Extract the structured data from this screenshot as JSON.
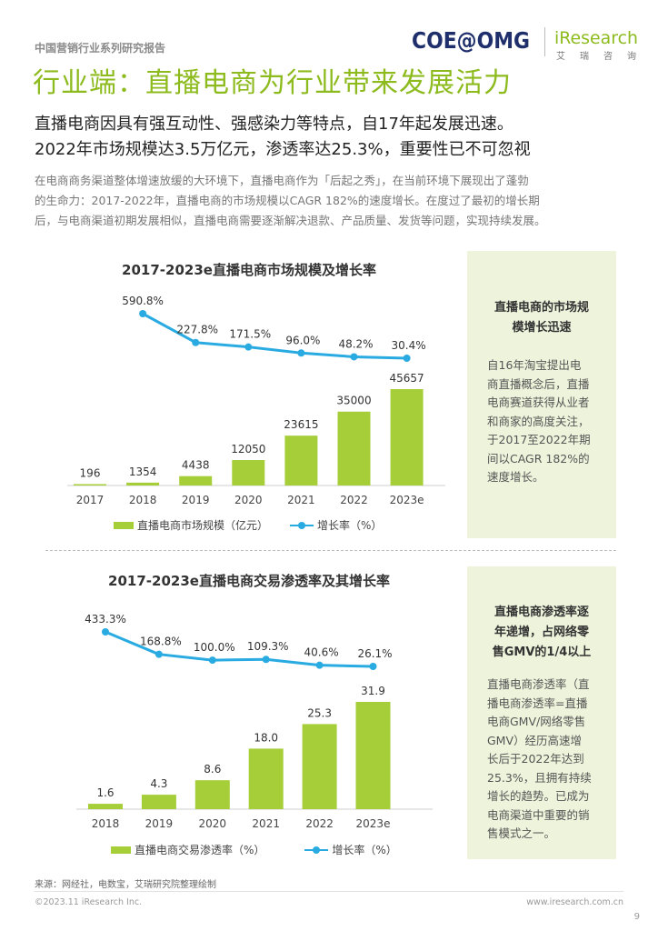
{
  "header": {
    "report_series": "中国营销行业系列研究报告",
    "logo_left": "COE@OMG",
    "logo_right": "iResearch",
    "logo_right_sub": "艾 瑞 咨 询"
  },
  "title": "行业端：直播电商为行业带来发展活力",
  "subtitle_line1": "直播电商因具有强互动性、强感染力等特点，自17年起发展迅速。",
  "subtitle_line2": "2022年市场规模达3.5万亿元，渗透率达25.3%，重要性已不可忽视",
  "intro_lines": [
    "在电商商务渠道整体增速放缓的大环境下，直播电商作为「后起之秀」，在当前环境下展现出了蓬勃",
    "的生命力：2017-2022年，直播电商的市场规模以CAGR 182%的速度增长。在度过了最初的增长期",
    "后，与电商渠道初期发展相似，直播电商需要逐渐解决退款、产品质量、发货等问题，实现持续发展。"
  ],
  "chart_data": [
    {
      "type": "bar",
      "title": "2017-2023e直播电商市场规模及增长率",
      "categories": [
        "2017",
        "2018",
        "2019",
        "2020",
        "2021",
        "2022",
        "2023e"
      ],
      "series": [
        {
          "name": "直播电商市场规模（亿元）",
          "type": "bar",
          "values": [
            196,
            1354,
            4438,
            12050,
            23615,
            35000,
            45657
          ],
          "labels": [
            "196",
            "1354",
            "4438",
            "12050",
            "23615",
            "35000",
            "45657"
          ]
        },
        {
          "name": "增长率（%）",
          "type": "line",
          "x": [
            "2018",
            "2019",
            "2020",
            "2021",
            "2022",
            "2023e"
          ],
          "values": [
            590.8,
            227.8,
            171.5,
            96.0,
            48.2,
            30.4
          ],
          "labels": [
            "590.8%",
            "227.8%",
            "171.5%",
            "96.0%",
            "48.2%",
            "30.4%"
          ]
        }
      ],
      "colors": {
        "bar": "#a6ce39",
        "line": "#29abe2"
      },
      "legend": "bottom",
      "grid": false
    },
    {
      "type": "bar",
      "title": "2017-2023e直播电商交易渗透率及其增长率",
      "categories": [
        "2018",
        "2019",
        "2020",
        "2021",
        "2022",
        "2023e"
      ],
      "series": [
        {
          "name": "直播电商交易渗透率（%）",
          "type": "bar",
          "values": [
            1.6,
            4.3,
            8.6,
            18.0,
            25.3,
            31.9
          ],
          "labels": [
            "1.6",
            "4.3",
            "8.6",
            "18.0",
            "25.3",
            "31.9"
          ]
        },
        {
          "name": "增长率（%）",
          "type": "line",
          "x": [
            "2018",
            "2019",
            "2020",
            "2021",
            "2022",
            "2023e"
          ],
          "values": [
            433.3,
            168.8,
            100.0,
            109.3,
            40.6,
            26.1
          ],
          "labels": [
            "433.3%",
            "168.8%",
            "100.0%",
            "109.3%",
            "40.6%",
            "26.1%"
          ]
        }
      ],
      "colors": {
        "bar": "#a6ce39",
        "line": "#29abe2"
      },
      "legend": "bottom",
      "grid": false
    }
  ],
  "side_panels": [
    {
      "title_lines": [
        "直播电商的市场规",
        "模增长迅速"
      ],
      "body_lines": [
        "自16年淘宝提出电",
        "商直播概念后，直播",
        "电商赛道获得从业者",
        "和商家的高度关注，",
        "于2017至2022年期",
        "间以CAGR 182%的",
        "速度增长。"
      ]
    },
    {
      "title_lines": [
        "直播电商渗透率逐",
        "年递增，占网络零",
        "售GMV的1/4以上"
      ],
      "body_lines": [
        "直播电商渗透率（直",
        "播电商渗透率=直播",
        "电商GMV/网络零售",
        "GMV）经历高速增",
        "长后于2022年达到",
        "25.3%，且拥有持续",
        "增长的趋势。已成为",
        "电商渠道中重要的销",
        "售模式之一。"
      ]
    }
  ],
  "footer": {
    "source": "来源：网经社，电数宝，艾瑞研究院整理绘制",
    "copyright": "©2023.11 iResearch Inc.",
    "website": "www.iresearch.com.cn",
    "page_number": "9"
  }
}
